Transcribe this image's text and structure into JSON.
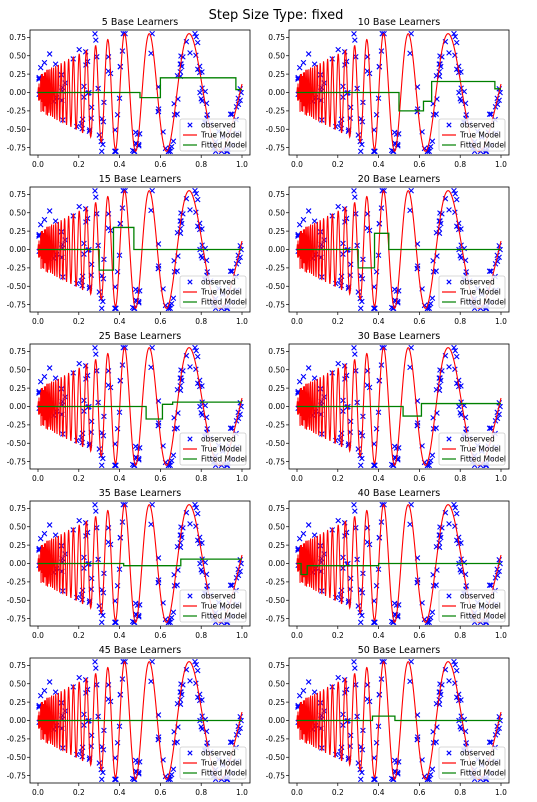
{
  "figure": {
    "suptitle": "Step Size Type: fixed"
  },
  "chart_data": [
    {
      "type": "line",
      "title": "5 Base Learners",
      "xlim": [
        0,
        1
      ],
      "ylim": [
        -0.85,
        0.85
      ],
      "xticks": [
        0,
        0.2,
        0.4,
        0.6,
        0.8,
        1.0
      ],
      "yticks": [
        0.75,
        0.5,
        0.25,
        0,
        -0.25,
        -0.5,
        -0.75
      ],
      "legend": [
        "observed",
        "True Model",
        "Fitted Model"
      ],
      "legend_position": "lower-right",
      "fitted": [
        [
          0,
          0
        ],
        [
          0.5,
          0
        ],
        [
          0.5,
          -0.07
        ],
        [
          0.6,
          -0.07
        ],
        [
          0.6,
          0.2
        ],
        [
          0.97,
          0.2
        ],
        [
          0.97,
          0.04
        ],
        [
          1,
          0.04
        ]
      ]
    },
    {
      "type": "line",
      "title": "10 Base Learners",
      "xlim": [
        0,
        1
      ],
      "ylim": [
        -0.85,
        0.85
      ],
      "xticks": [
        0,
        0.2,
        0.4,
        0.6,
        0.8,
        1.0
      ],
      "yticks": [
        0.75,
        0.5,
        0.25,
        0,
        -0.25,
        -0.5,
        -0.75
      ],
      "legend": [
        "observed",
        "True Model",
        "Fitted Model"
      ],
      "legend_position": "lower-right",
      "fitted": [
        [
          0,
          0
        ],
        [
          0.5,
          0
        ],
        [
          0.5,
          -0.25
        ],
        [
          0.62,
          -0.25
        ],
        [
          0.62,
          -0.12
        ],
        [
          0.66,
          -0.12
        ],
        [
          0.66,
          0.15
        ],
        [
          0.97,
          0.15
        ],
        [
          0.97,
          0.05
        ],
        [
          1,
          0.05
        ]
      ]
    },
    {
      "type": "line",
      "title": "15 Base Learners",
      "xlim": [
        0,
        1
      ],
      "ylim": [
        -0.85,
        0.85
      ],
      "xticks": [
        0,
        0.2,
        0.4,
        0.6,
        0.8,
        1.0
      ],
      "yticks": [
        0.75,
        0.5,
        0.25,
        0,
        -0.25,
        -0.5,
        -0.75
      ],
      "legend": [
        "observed",
        "True Model",
        "Fitted Model"
      ],
      "legend_position": "lower-right",
      "fitted": [
        [
          0,
          0
        ],
        [
          0.3,
          0
        ],
        [
          0.3,
          -0.28
        ],
        [
          0.37,
          -0.28
        ],
        [
          0.37,
          0.3
        ],
        [
          0.47,
          0.3
        ],
        [
          0.47,
          0
        ],
        [
          1,
          0
        ]
      ]
    },
    {
      "type": "line",
      "title": "20 Base Learners",
      "xlim": [
        0,
        1
      ],
      "ylim": [
        -0.85,
        0.85
      ],
      "xticks": [
        0,
        0.2,
        0.4,
        0.6,
        0.8,
        1.0
      ],
      "yticks": [
        0.75,
        0.5,
        0.25,
        0,
        -0.25,
        -0.5,
        -0.75
      ],
      "legend": [
        "observed",
        "True Model",
        "Fitted Model"
      ],
      "legend_position": "lower-right",
      "fitted": [
        [
          0,
          0
        ],
        [
          0.3,
          0
        ],
        [
          0.3,
          -0.25
        ],
        [
          0.38,
          -0.25
        ],
        [
          0.38,
          0.22
        ],
        [
          0.45,
          0.22
        ],
        [
          0.45,
          0
        ],
        [
          1,
          0
        ]
      ]
    },
    {
      "type": "line",
      "title": "25 Base Learners",
      "xlim": [
        0,
        1
      ],
      "ylim": [
        -0.85,
        0.85
      ],
      "xticks": [
        0,
        0.2,
        0.4,
        0.6,
        0.8,
        1.0
      ],
      "yticks": [
        0.75,
        0.5,
        0.25,
        0,
        -0.25,
        -0.5,
        -0.75
      ],
      "legend": [
        "observed",
        "True Model",
        "Fitted Model"
      ],
      "legend_position": "lower-right",
      "fitted": [
        [
          0,
          0
        ],
        [
          0.53,
          0
        ],
        [
          0.53,
          -0.17
        ],
        [
          0.61,
          -0.17
        ],
        [
          0.61,
          0.03
        ],
        [
          0.66,
          0.03
        ],
        [
          0.66,
          0.06
        ],
        [
          1,
          0.06
        ]
      ]
    },
    {
      "type": "line",
      "title": "30 Base Learners",
      "xlim": [
        0,
        1
      ],
      "ylim": [
        -0.85,
        0.85
      ],
      "xticks": [
        0,
        0.2,
        0.4,
        0.6,
        0.8,
        1.0
      ],
      "yticks": [
        0.75,
        0.5,
        0.25,
        0,
        -0.25,
        -0.5,
        -0.75
      ],
      "legend": [
        "observed",
        "True Model",
        "Fitted Model"
      ],
      "legend_position": "lower-right",
      "fitted": [
        [
          0,
          0
        ],
        [
          0.52,
          0
        ],
        [
          0.52,
          -0.13
        ],
        [
          0.61,
          -0.13
        ],
        [
          0.61,
          0.04
        ],
        [
          1,
          0.04
        ]
      ]
    },
    {
      "type": "line",
      "title": "35 Base Learners",
      "xlim": [
        0,
        1
      ],
      "ylim": [
        -0.85,
        0.85
      ],
      "xticks": [
        0,
        0.2,
        0.4,
        0.6,
        0.8,
        1.0
      ],
      "yticks": [
        0.75,
        0.5,
        0.25,
        0,
        -0.25,
        -0.5,
        -0.75
      ],
      "legend": [
        "observed",
        "True Model",
        "Fitted Model"
      ],
      "legend_position": "lower-right",
      "fitted": [
        [
          0,
          0
        ],
        [
          0.42,
          0
        ],
        [
          0.42,
          -0.03
        ],
        [
          0.7,
          -0.03
        ],
        [
          0.7,
          0.06
        ],
        [
          1,
          0.06
        ]
      ]
    },
    {
      "type": "line",
      "title": "40 Base Learners",
      "xlim": [
        0,
        1
      ],
      "ylim": [
        -0.85,
        0.85
      ],
      "xticks": [
        0,
        0.2,
        0.4,
        0.6,
        0.8,
        1.0
      ],
      "yticks": [
        0.75,
        0.5,
        0.25,
        0,
        -0.25,
        -0.5,
        -0.75
      ],
      "legend": [
        "observed",
        "True Model",
        "Fitted Model"
      ],
      "legend_position": "lower-right",
      "fitted": [
        [
          0,
          0
        ],
        [
          0.02,
          0
        ],
        [
          0.02,
          -0.15
        ],
        [
          0.05,
          -0.15
        ],
        [
          0.05,
          -0.03
        ],
        [
          0.4,
          -0.03
        ],
        [
          0.4,
          0
        ],
        [
          1,
          0
        ]
      ]
    },
    {
      "type": "line",
      "title": "45 Base Learners",
      "xlim": [
        0,
        1
      ],
      "ylim": [
        -0.85,
        0.85
      ],
      "xticks": [
        0,
        0.2,
        0.4,
        0.6,
        0.8,
        1.0
      ],
      "yticks": [
        0.75,
        0.5,
        0.25,
        0,
        -0.25,
        -0.5,
        -0.75
      ],
      "legend": [
        "observed",
        "True Model",
        "Fitted Model"
      ],
      "legend_position": "lower-right",
      "fitted": [
        [
          0,
          0
        ],
        [
          1,
          0
        ]
      ]
    },
    {
      "type": "line",
      "title": "50 Base Learners",
      "xlim": [
        0,
        1
      ],
      "ylim": [
        -0.85,
        0.85
      ],
      "xticks": [
        0,
        0.2,
        0.4,
        0.6,
        0.8,
        1.0
      ],
      "yticks": [
        0.75,
        0.5,
        0.25,
        0,
        -0.25,
        -0.5,
        -0.75
      ],
      "legend": [
        "observed",
        "True Model",
        "Fitted Model"
      ],
      "legend_position": "lower-right",
      "fitted": [
        [
          0,
          0
        ],
        [
          0.37,
          0
        ],
        [
          0.37,
          0.06
        ],
        [
          0.48,
          0.06
        ],
        [
          0.48,
          0
        ],
        [
          1,
          0
        ]
      ]
    }
  ],
  "colors": {
    "observed": "#0000ff",
    "true_model": "#ff0000",
    "fitted_model": "#008000",
    "legend_edge": "#cccccc"
  }
}
